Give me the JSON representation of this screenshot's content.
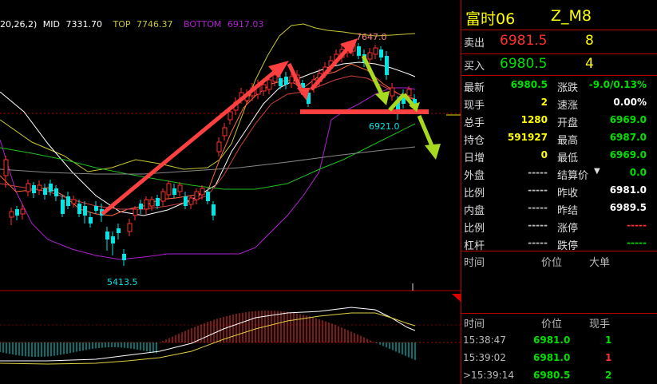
{
  "indicator": {
    "params": "20,26,2)",
    "mid_label": "MID",
    "mid_value": "7331.70",
    "top_label": "TOP",
    "top_value": "7746.37",
    "bottom_label": "BOTTOM",
    "bottom_value": "6917.03"
  },
  "annotations": {
    "high": "7647.0",
    "low": "5413.5",
    "mid_low": "6921.0"
  },
  "colors": {
    "bull": "#ff3030",
    "bear": "#00e5e5",
    "mid_line": "#ffffff",
    "top_line": "#c8c832",
    "bottom_line": "#b020d0",
    "ma_green": "#20c020",
    "arrow_red": "#ff4040",
    "arrow_green": "#a8d820"
  },
  "header": {
    "name": "富时06",
    "code": "Z_M8"
  },
  "orderbook": {
    "sell_label": "卖出",
    "sell_price": "6981.5",
    "sell_qty": "8",
    "buy_label": "买入",
    "buy_price": "6980.5",
    "buy_qty": "4"
  },
  "quote": [
    {
      "l1": "最新",
      "v1": "6980.5",
      "c1": "g",
      "l2": "涨跌",
      "v2": "-9.0/0.13%",
      "c2": "g"
    },
    {
      "l1": "现手",
      "v1": "2",
      "c1": "y",
      "l2": "速涨",
      "v2": "0.00%",
      "c2": "w"
    },
    {
      "l1": "总手",
      "v1": "1280",
      "c1": "y",
      "l2": "开盘",
      "v2": "6969.0",
      "c2": "g"
    },
    {
      "l1": "持仓",
      "v1": "591927",
      "c1": "y",
      "l2": "最高",
      "v2": "6987.0",
      "c2": "g"
    },
    {
      "l1": "日增",
      "v1": "0",
      "c1": "y",
      "l2": "最低",
      "v2": "6969.0",
      "c2": "g"
    },
    {
      "l1": "外盘",
      "v1": "-----",
      "c1": "gray",
      "l2": "结算价",
      "v2": "0.0",
      "c2": "g"
    },
    {
      "l1": "比例",
      "v1": "-----",
      "c1": "gray",
      "l2": "昨收",
      "v2": "6981.0",
      "c2": "w"
    },
    {
      "l1": "内盘",
      "v1": "-----",
      "c1": "gray",
      "l2": "昨结",
      "v2": "6989.5",
      "c2": "w"
    },
    {
      "l1": "比例",
      "v1": "-----",
      "c1": "gray",
      "l2": "涨停",
      "v2": "-----",
      "c2": "r"
    },
    {
      "l1": "杠杆",
      "v1": "-----",
      "c1": "gray",
      "l2": "跌停",
      "v2": "-----",
      "c2": "g"
    }
  ],
  "big_orders": {
    "col_time": "时间",
    "col_price": "价位",
    "col_size": "大单"
  },
  "ticks": {
    "col_time": "时间",
    "col_price": "价位",
    "col_qty": "现手",
    "rows": [
      {
        "time": "15:38:47",
        "price": "6981.0",
        "qty": "1",
        "qcolor": "g"
      },
      {
        "time": "15:39:02",
        "price": "6981.0",
        "qty": "1",
        "qcolor": "r"
      },
      {
        "time": ">15:39:14",
        "price": "6980.5",
        "qty": "2",
        "qcolor": "g"
      }
    ]
  }
}
